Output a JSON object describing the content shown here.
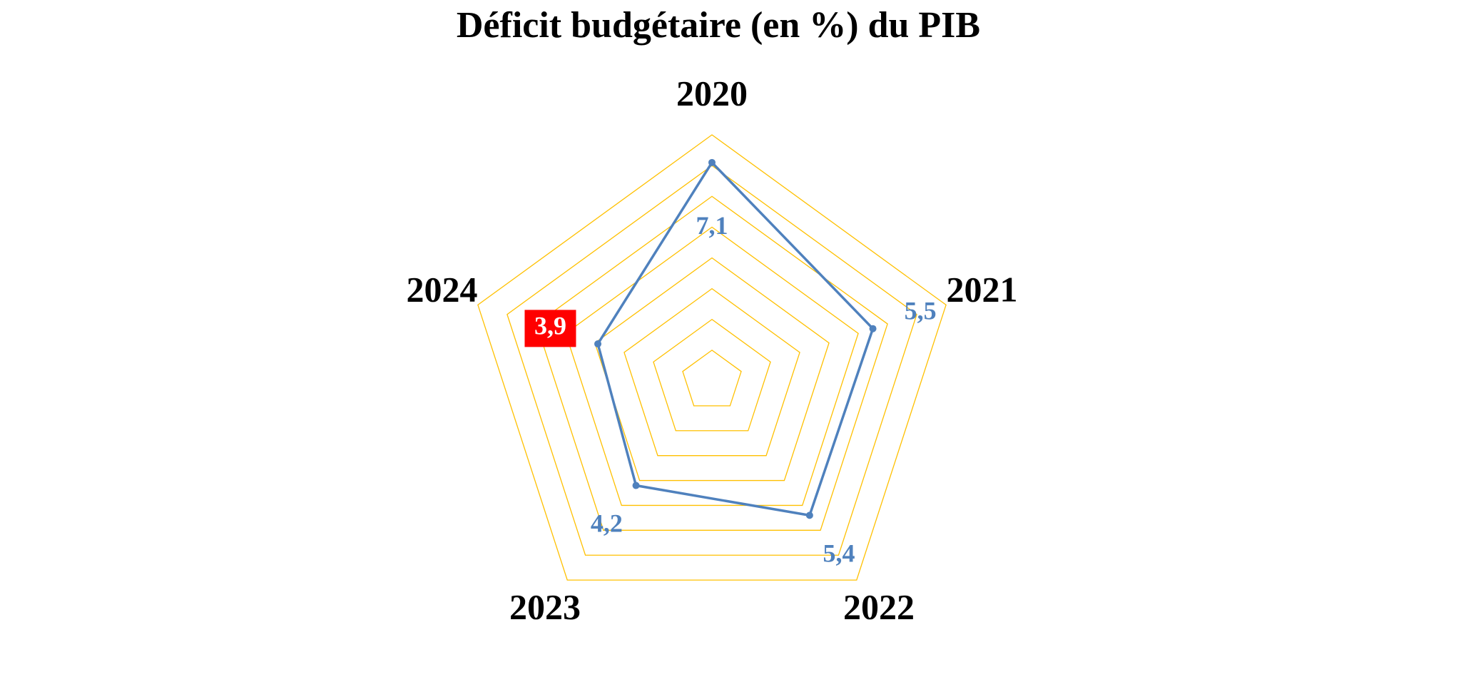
{
  "chart_data": {
    "type": "radar",
    "title": "Déficit budgétaire (en %) du PIB",
    "categories": [
      "2020",
      "2021",
      "2022",
      "2023",
      "2024"
    ],
    "series": [
      {
        "name": "Déficit budgétaire",
        "color": "#4f81bd",
        "values": [
          7.1,
          5.5,
          5.4,
          4.2,
          3.9
        ],
        "value_labels": [
          "7,1",
          "5,5",
          "5,4",
          "4,2",
          "3,9"
        ]
      }
    ],
    "rlim": [
      0,
      8
    ],
    "rticks": [
      1,
      2,
      3,
      4,
      5,
      6,
      7,
      8
    ],
    "grid": true,
    "grid_color": "#ffc000",
    "highlight_index": 4,
    "highlight_color": "#ff0000"
  }
}
